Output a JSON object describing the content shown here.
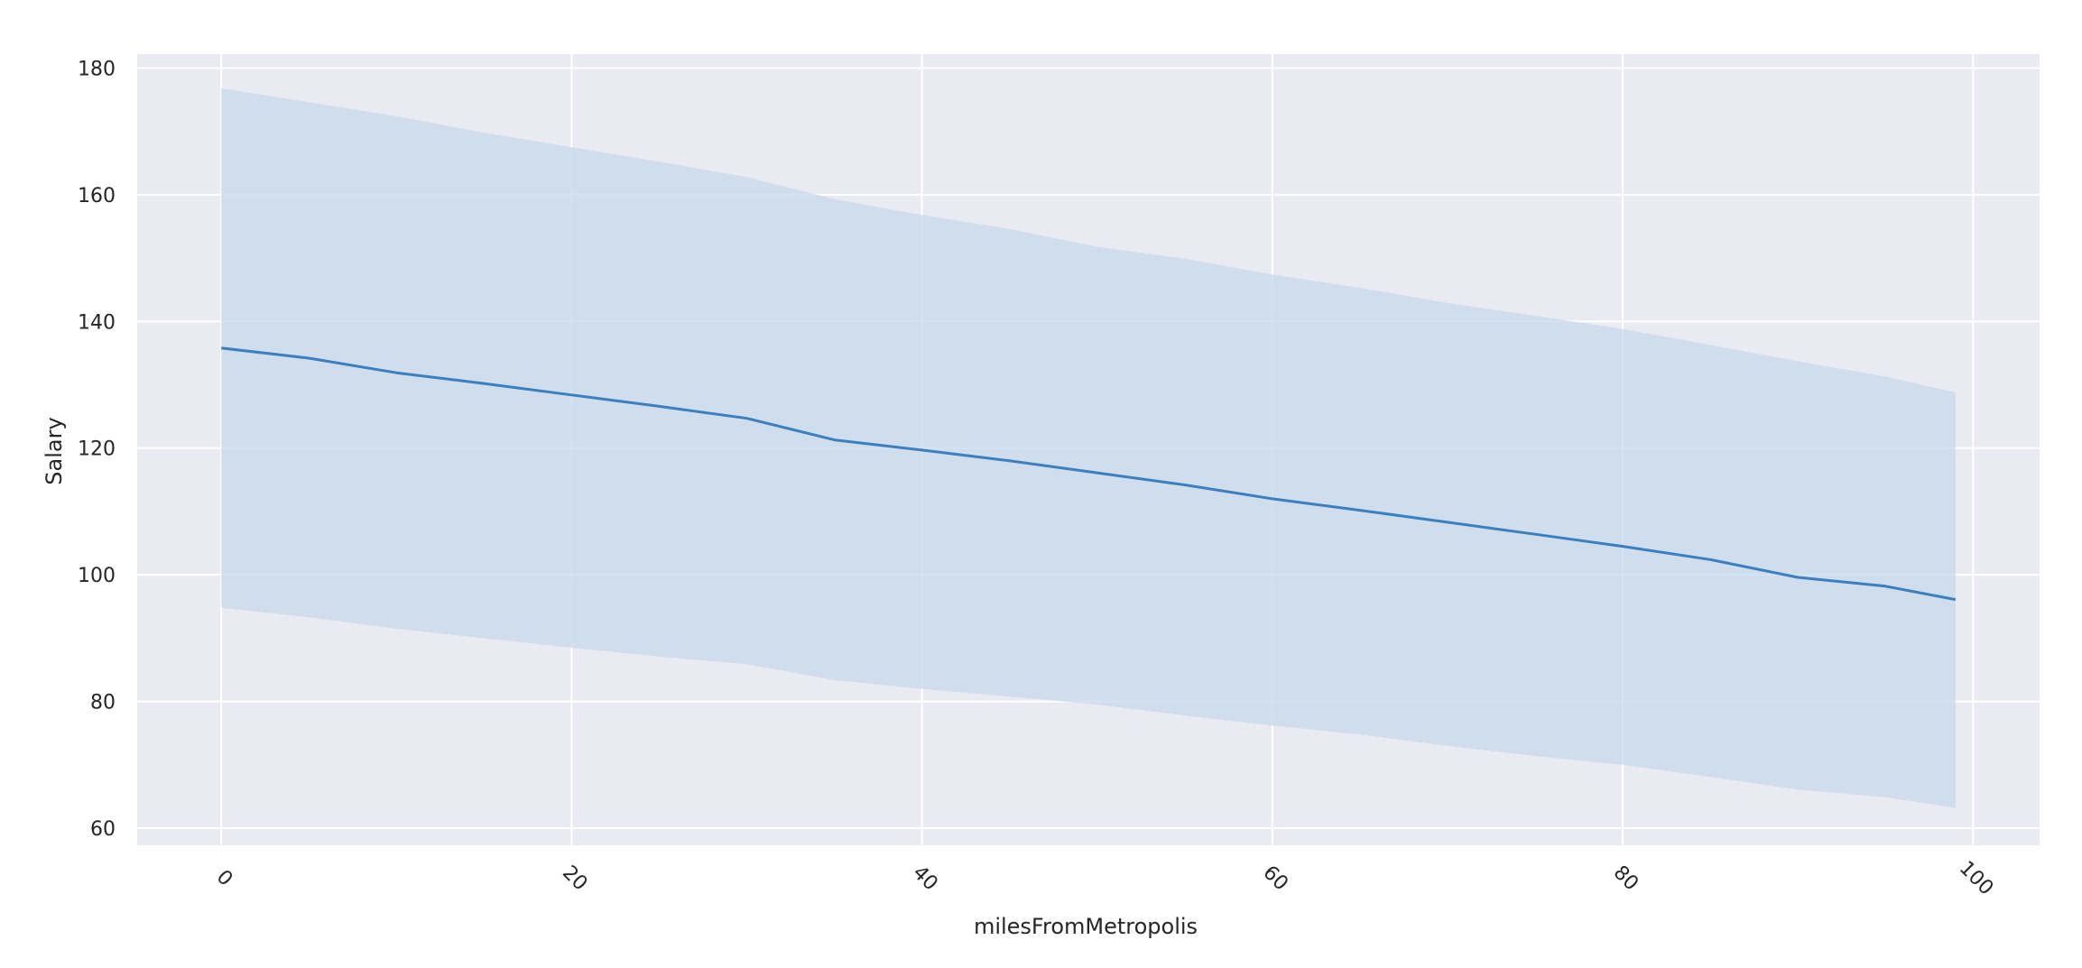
{
  "chart_data": {
    "type": "line",
    "title": "",
    "xlabel": "milesFromMetropolis",
    "ylabel": "Salary",
    "xlim": [
      -4.8,
      103.8
    ],
    "ylim": [
      57.3,
      182.2
    ],
    "xticks": [
      0,
      20,
      40,
      60,
      80,
      100
    ],
    "yticks": [
      60,
      80,
      100,
      120,
      140,
      160,
      180
    ],
    "x_tick_rotation": 45,
    "grid": true,
    "legend": "none",
    "colors": {
      "line": "#3a7fbf",
      "band": "#c7d8eb",
      "plot_background": "#eaeaf2",
      "grid": "#ffffff"
    },
    "series": [
      {
        "x": [
          0,
          5,
          10,
          15,
          20,
          25,
          30,
          35,
          40,
          45,
          50,
          55,
          60,
          65,
          70,
          75,
          80,
          85,
          90,
          95,
          99
        ],
        "values": [
          135.8,
          134.2,
          131.9,
          130.2,
          128.4,
          126.6,
          124.7,
          121.3,
          119.7,
          118.0,
          116.1,
          114.2,
          112.0,
          110.2,
          108.3,
          106.4,
          104.5,
          102.4,
          99.6,
          98.2,
          96.1
        ],
        "ci_upper": [
          176.8,
          174.6,
          172.4,
          169.8,
          167.5,
          165.2,
          162.8,
          159.3,
          156.8,
          154.6,
          151.8,
          149.9,
          147.4,
          145.3,
          142.9,
          140.9,
          138.8,
          136.3,
          133.7,
          131.3,
          128.8
        ],
        "ci_lower": [
          94.8,
          93.3,
          91.5,
          90.0,
          88.5,
          87.1,
          85.9,
          83.4,
          82.0,
          80.8,
          79.5,
          77.8,
          76.2,
          74.8,
          73.0,
          71.4,
          70.0,
          68.1,
          66.1,
          64.9,
          63.2
        ]
      }
    ]
  }
}
